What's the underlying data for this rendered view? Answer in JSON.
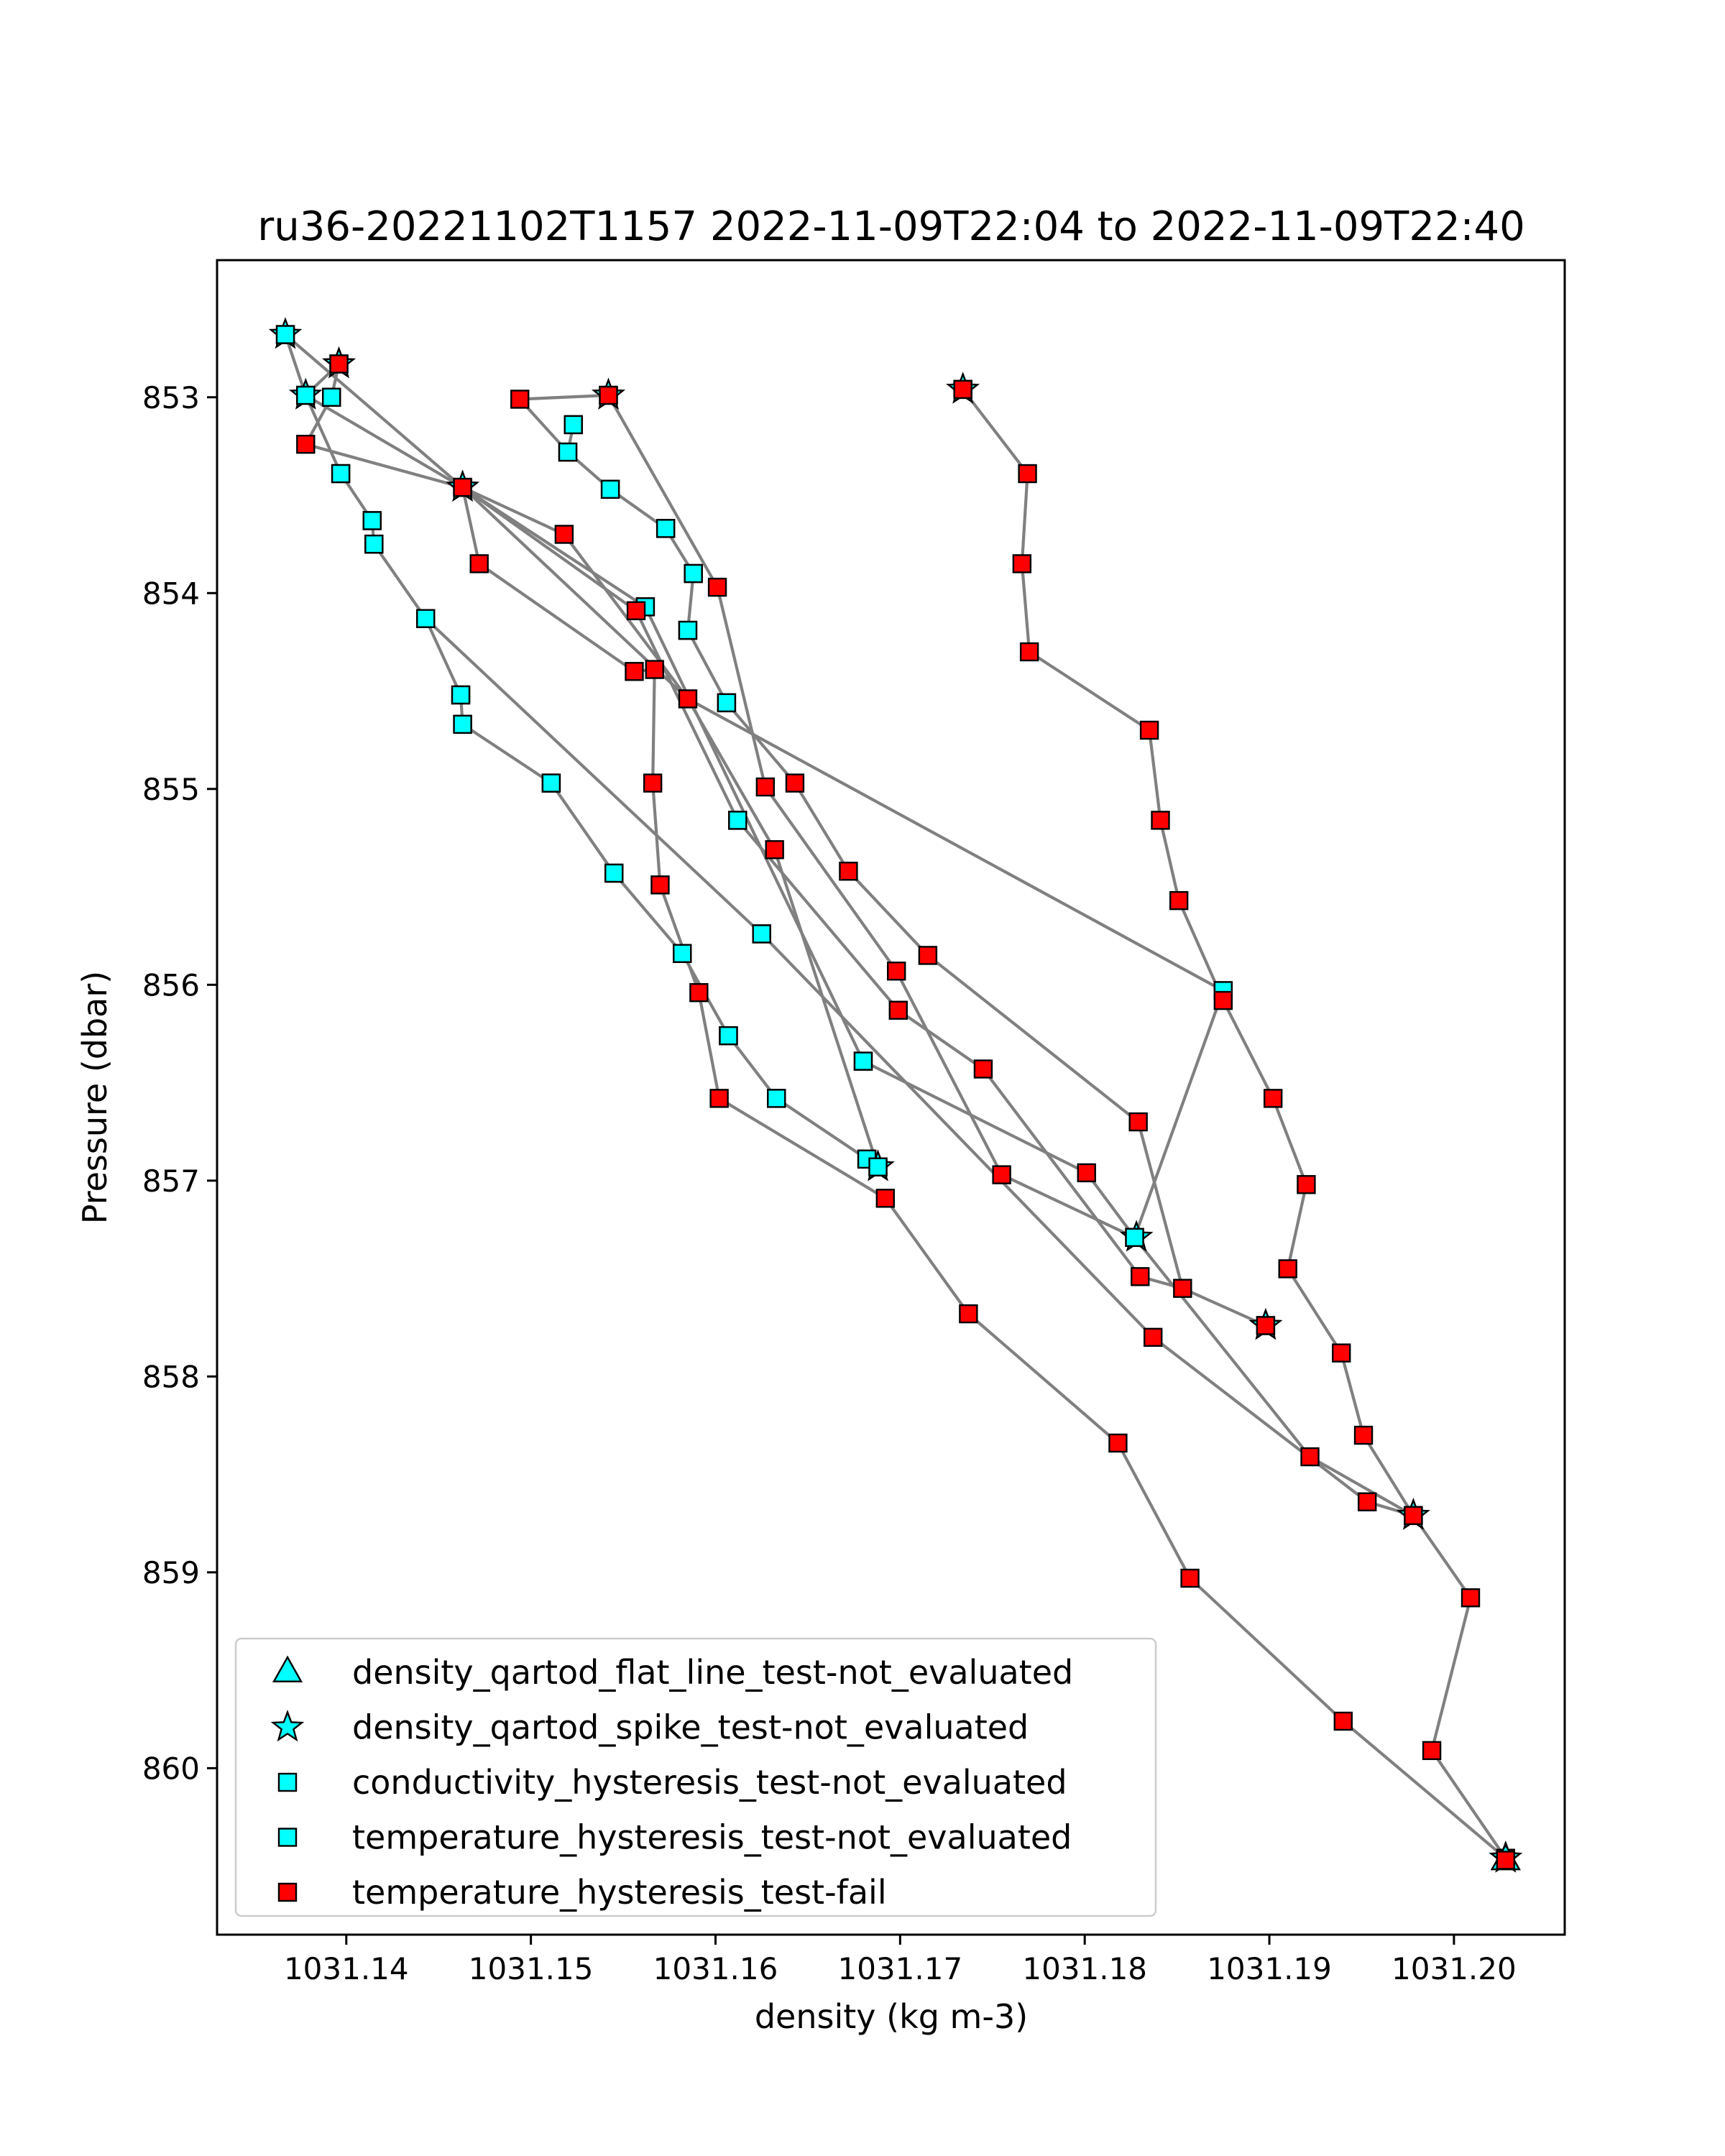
{
  "chart_data": {
    "type": "line",
    "title": "ru36-20221102T1157 2022-11-09T22:04 to 2022-11-09T22:40",
    "xlabel": "density (kg m-3)",
    "ylabel": "Pressure (dbar)",
    "xlim": [
      1031.133,
      1031.206
    ],
    "ylim": [
      860.85,
      852.3
    ],
    "y_inverted": true,
    "grid": false,
    "legend_position": "lower-left",
    "xticks": [
      1031.14,
      1031.15,
      1031.16,
      1031.17,
      1031.18,
      1031.19,
      1031.2
    ],
    "xtick_labels": [
      "1031.14",
      "1031.15",
      "1031.16",
      "1031.17",
      "1031.18",
      "1031.19",
      "1031.20"
    ],
    "yticks": [
      853,
      854,
      855,
      856,
      857,
      858,
      859,
      860
    ],
    "ytick_labels": [
      "853",
      "854",
      "855",
      "856",
      "857",
      "858",
      "859",
      "860"
    ],
    "line_color": "#808080",
    "colors": {
      "cyan": "#00ffff",
      "red": "#ff0000",
      "edge": "#000000"
    },
    "series": [
      {
        "name": "density_qartod_flat_line_test-not_evaluated",
        "marker": "triangle",
        "color": "#00ffff",
        "points": [
          [
            1031.2028,
            860.47
          ]
        ]
      },
      {
        "name": "density_qartod_spike_test-not_evaluated",
        "marker": "star",
        "color": "#00ffff",
        "points": [
          [
            1031.1367,
            852.68
          ],
          [
            1031.1396,
            852.83
          ],
          [
            1031.1378,
            852.99
          ],
          [
            1031.1542,
            852.99
          ],
          [
            1031.1734,
            852.96
          ],
          [
            1031.1463,
            853.46
          ],
          [
            1031.1688,
            856.93
          ],
          [
            1031.1828,
            857.29
          ],
          [
            1031.1898,
            857.74
          ],
          [
            1031.1978,
            858.71
          ],
          [
            1031.2028,
            860.46
          ]
        ]
      },
      {
        "name": "conductivity_hysteresis_test-not_evaluated",
        "marker": "square",
        "color": "#00ffff",
        "points": [
          [
            1031.1367,
            852.68
          ],
          [
            1031.1378,
            852.99
          ],
          [
            1031.1392,
            853.0
          ],
          [
            1031.1397,
            853.39
          ],
          [
            1031.1414,
            853.63
          ],
          [
            1031.1415,
            853.75
          ],
          [
            1031.1443,
            854.13
          ],
          [
            1031.1462,
            854.52
          ],
          [
            1031.1463,
            854.67
          ],
          [
            1031.1463,
            853.46
          ],
          [
            1031.1511,
            854.97
          ],
          [
            1031.1523,
            853.14
          ],
          [
            1031.152,
            853.28
          ],
          [
            1031.1543,
            853.47
          ],
          [
            1031.1573,
            853.67
          ],
          [
            1031.1562,
            854.07
          ],
          [
            1031.1588,
            853.9
          ],
          [
            1031.1585,
            854.19
          ],
          [
            1031.1606,
            854.56
          ],
          [
            1031.1545,
            855.43
          ],
          [
            1031.1582,
            855.84
          ],
          [
            1031.1607,
            856.26
          ],
          [
            1031.1612,
            855.16
          ],
          [
            1031.1625,
            855.74
          ],
          [
            1031.1633,
            856.58
          ],
          [
            1031.168,
            856.39
          ],
          [
            1031.1682,
            856.89
          ],
          [
            1031.1688,
            856.93
          ],
          [
            1031.1734,
            852.96
          ],
          [
            1031.1827,
            857.29
          ],
          [
            1031.1875,
            856.03
          ]
        ]
      },
      {
        "name": "temperature_hysteresis_test-not_evaluated",
        "marker": "square",
        "color": "#00ffff",
        "points": [
          [
            1031.1367,
            852.68
          ],
          [
            1031.1378,
            852.99
          ],
          [
            1031.1392,
            853.0
          ],
          [
            1031.1397,
            853.39
          ],
          [
            1031.1414,
            853.63
          ],
          [
            1031.1415,
            853.75
          ],
          [
            1031.1443,
            854.13
          ],
          [
            1031.1462,
            854.52
          ],
          [
            1031.1463,
            854.67
          ],
          [
            1031.1511,
            854.97
          ],
          [
            1031.1523,
            853.14
          ],
          [
            1031.152,
            853.28
          ],
          [
            1031.1543,
            853.47
          ],
          [
            1031.1573,
            853.67
          ],
          [
            1031.1562,
            854.07
          ],
          [
            1031.1588,
            853.9
          ],
          [
            1031.1585,
            854.19
          ],
          [
            1031.1606,
            854.56
          ],
          [
            1031.1545,
            855.43
          ],
          [
            1031.1582,
            855.84
          ],
          [
            1031.1607,
            856.26
          ],
          [
            1031.1612,
            855.16
          ],
          [
            1031.1625,
            855.74
          ],
          [
            1031.1633,
            856.58
          ],
          [
            1031.168,
            856.39
          ],
          [
            1031.1682,
            856.89
          ],
          [
            1031.1688,
            856.93
          ],
          [
            1031.1827,
            857.29
          ],
          [
            1031.1875,
            856.03
          ]
        ]
      },
      {
        "name": "temperature_hysteresis_test-fail",
        "marker": "square",
        "color": "#ff0000",
        "points": [
          [
            1031.1396,
            852.83
          ],
          [
            1031.1378,
            853.24
          ],
          [
            1031.1542,
            852.99
          ],
          [
            1031.1494,
            853.01
          ],
          [
            1031.1734,
            852.96
          ],
          [
            1031.1463,
            853.46
          ],
          [
            1031.1518,
            853.7
          ],
          [
            1031.1472,
            853.85
          ],
          [
            1031.1601,
            853.97
          ],
          [
            1031.1557,
            854.09
          ],
          [
            1031.1556,
            854.4
          ],
          [
            1031.1567,
            854.39
          ],
          [
            1031.1585,
            854.54
          ],
          [
            1031.1566,
            854.97
          ],
          [
            1031.1627,
            854.99
          ],
          [
            1031.1643,
            854.97
          ],
          [
            1031.1632,
            855.31
          ],
          [
            1031.157,
            855.49
          ],
          [
            1031.1672,
            855.42
          ],
          [
            1031.1591,
            856.04
          ],
          [
            1031.1602,
            856.58
          ],
          [
            1031.1698,
            855.93
          ],
          [
            1031.1715,
            855.85
          ],
          [
            1031.1699,
            856.13
          ],
          [
            1031.1745,
            856.43
          ],
          [
            1031.1692,
            857.09
          ],
          [
            1031.1755,
            856.97
          ],
          [
            1031.1737,
            857.68
          ],
          [
            1031.1769,
            853.39
          ],
          [
            1031.1766,
            853.85
          ],
          [
            1031.177,
            854.3
          ],
          [
            1031.1801,
            856.96
          ],
          [
            1031.1829,
            856.7
          ],
          [
            1031.1835,
            854.7
          ],
          [
            1031.1841,
            855.16
          ],
          [
            1031.1851,
            855.57
          ],
          [
            1031.1875,
            856.08
          ],
          [
            1031.183,
            857.49
          ],
          [
            1031.1853,
            857.55
          ],
          [
            1031.1837,
            857.8
          ],
          [
            1031.1818,
            858.34
          ],
          [
            1031.1857,
            859.03
          ],
          [
            1031.1898,
            857.74
          ],
          [
            1031.1902,
            856.58
          ],
          [
            1031.192,
            857.02
          ],
          [
            1031.191,
            857.45
          ],
          [
            1031.1939,
            857.88
          ],
          [
            1031.1922,
            858.41
          ],
          [
            1031.1951,
            858.3
          ],
          [
            1031.1953,
            858.64
          ],
          [
            1031.1978,
            858.71
          ],
          [
            1031.194,
            859.76
          ],
          [
            1031.2009,
            859.13
          ],
          [
            1031.1988,
            859.91
          ],
          [
            1031.2028,
            860.46
          ]
        ]
      }
    ],
    "paths": [
      [
        [
          1031.1367,
          852.68
        ],
        [
          1031.1378,
          852.99
        ],
        [
          1031.1397,
          853.39
        ],
        [
          1031.1414,
          853.63
        ],
        [
          1031.1415,
          853.75
        ],
        [
          1031.1443,
          854.13
        ],
        [
          1031.1462,
          854.52
        ],
        [
          1031.1463,
          854.67
        ],
        [
          1031.1511,
          854.97
        ],
        [
          1031.1545,
          855.43
        ],
        [
          1031.1582,
          855.84
        ],
        [
          1031.1607,
          856.26
        ],
        [
          1031.1633,
          856.58
        ],
        [
          1031.1682,
          856.89
        ],
        [
          1031.1688,
          856.93
        ],
        [
          1031.1632,
          855.31
        ],
        [
          1031.1585,
          854.54
        ],
        [
          1031.1463,
          853.46
        ],
        [
          1031.1378,
          853.24
        ],
        [
          1031.1392,
          853.0
        ],
        [
          1031.1396,
          852.83
        ],
        [
          1031.1378,
          852.99
        ],
        [
          1031.1463,
          853.46
        ],
        [
          1031.1518,
          853.7
        ],
        [
          1031.1585,
          854.54
        ],
        [
          1031.1875,
          856.03
        ],
        [
          1031.1827,
          857.29
        ],
        [
          1031.1755,
          856.97
        ],
        [
          1031.1698,
          855.93
        ],
        [
          1031.1627,
          854.99
        ],
        [
          1031.1601,
          853.97
        ],
        [
          1031.1542,
          852.99
        ]
      ],
      [
        [
          1031.1542,
          852.99
        ],
        [
          1031.1494,
          853.01
        ],
        [
          1031.152,
          853.28
        ],
        [
          1031.1523,
          853.14
        ],
        [
          1031.152,
          853.28
        ],
        [
          1031.1543,
          853.47
        ],
        [
          1031.1573,
          853.67
        ],
        [
          1031.1588,
          853.9
        ],
        [
          1031.1585,
          854.19
        ],
        [
          1031.1606,
          854.56
        ],
        [
          1031.1643,
          854.97
        ],
        [
          1031.1672,
          855.42
        ],
        [
          1031.1715,
          855.85
        ],
        [
          1031.1829,
          856.7
        ],
        [
          1031.1853,
          857.55
        ],
        [
          1031.1898,
          857.74
        ],
        [
          1031.1853,
          857.55
        ],
        [
          1031.183,
          857.49
        ],
        [
          1031.1745,
          856.43
        ],
        [
          1031.1699,
          856.13
        ],
        [
          1031.1612,
          855.16
        ],
        [
          1031.1557,
          854.09
        ],
        [
          1031.1463,
          853.46
        ],
        [
          1031.1472,
          853.85
        ],
        [
          1031.1556,
          854.4
        ],
        [
          1031.1567,
          854.39
        ],
        [
          1031.1566,
          854.97
        ],
        [
          1031.157,
          855.49
        ],
        [
          1031.1591,
          856.04
        ],
        [
          1031.1602,
          856.58
        ],
        [
          1031.1692,
          857.09
        ],
        [
          1031.1737,
          857.68
        ],
        [
          1031.1818,
          858.34
        ],
        [
          1031.1857,
          859.03
        ],
        [
          1031.194,
          859.76
        ],
        [
          1031.2028,
          860.46
        ]
      ],
      [
        [
          1031.1367,
          852.68
        ],
        [
          1031.1463,
          853.46
        ],
        [
          1031.1562,
          854.07
        ],
        [
          1031.168,
          856.39
        ],
        [
          1031.1801,
          856.96
        ],
        [
          1031.1827,
          857.29
        ],
        [
          1031.1922,
          858.41
        ],
        [
          1031.1978,
          858.71
        ],
        [
          1031.1953,
          858.64
        ],
        [
          1031.1837,
          857.8
        ],
        [
          1031.1625,
          855.74
        ],
        [
          1031.1443,
          854.13
        ]
      ],
      [
        [
          1031.1734,
          852.96
        ],
        [
          1031.1769,
          853.39
        ],
        [
          1031.1766,
          853.85
        ],
        [
          1031.177,
          854.3
        ],
        [
          1031.1835,
          854.7
        ],
        [
          1031.1841,
          855.16
        ],
        [
          1031.1851,
          855.57
        ],
        [
          1031.1875,
          856.08
        ],
        [
          1031.1902,
          856.58
        ],
        [
          1031.192,
          857.02
        ],
        [
          1031.191,
          857.45
        ],
        [
          1031.1939,
          857.88
        ],
        [
          1031.1951,
          858.3
        ],
        [
          1031.1978,
          858.71
        ],
        [
          1031.2009,
          859.13
        ],
        [
          1031.1988,
          859.91
        ],
        [
          1031.2028,
          860.46
        ]
      ]
    ]
  }
}
